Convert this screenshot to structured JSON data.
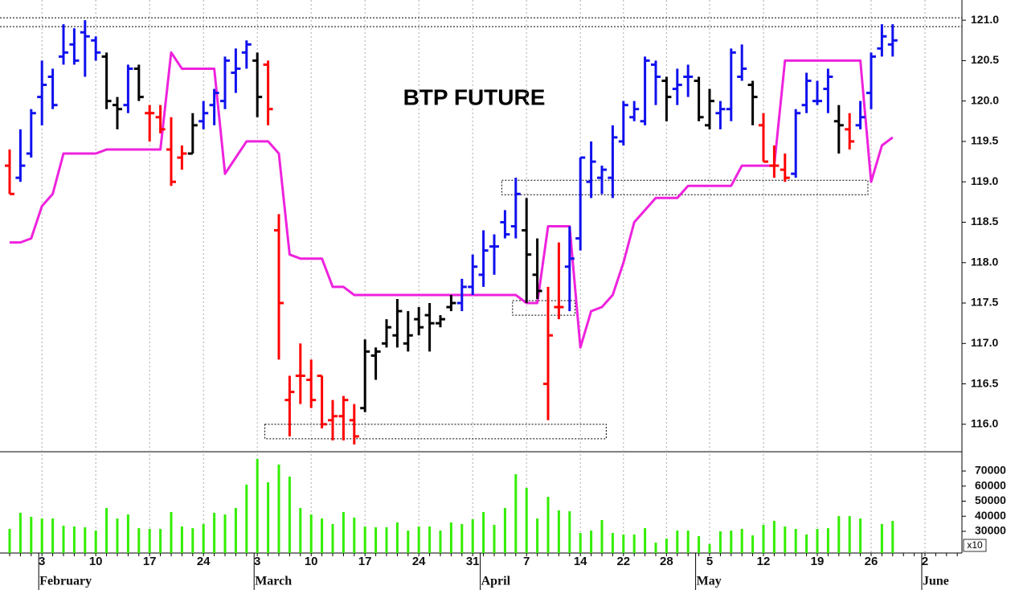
{
  "chart_data": {
    "type": "ohlc",
    "title": "BTP FUTURE",
    "categories": [
      null,
      null,
      null,
      "3",
      null,
      null,
      null,
      null,
      "10",
      null,
      null,
      null,
      null,
      "17",
      null,
      null,
      null,
      null,
      "24",
      null,
      null,
      null,
      null,
      "3",
      null,
      null,
      null,
      null,
      "10",
      null,
      null,
      null,
      null,
      "17",
      null,
      null,
      null,
      null,
      "24",
      null,
      null,
      null,
      null,
      "31",
      null,
      null,
      null,
      null,
      "7",
      null,
      null,
      null,
      null,
      "14",
      null,
      null,
      null,
      "22",
      null,
      null,
      null,
      "28",
      null,
      null,
      null,
      "5",
      null,
      null,
      null,
      null,
      "12",
      null,
      null,
      null,
      null,
      "19",
      null,
      null,
      null,
      null,
      "26",
      null,
      null,
      null,
      null,
      "2",
      null,
      null,
      null
    ],
    "months": [
      null,
      null,
      null,
      "February",
      null,
      null,
      null,
      null,
      null,
      null,
      null,
      null,
      null,
      null,
      null,
      null,
      null,
      null,
      null,
      null,
      null,
      null,
      null,
      "March",
      null,
      null,
      null,
      null,
      null,
      null,
      null,
      null,
      null,
      null,
      null,
      null,
      null,
      null,
      null,
      null,
      null,
      null,
      null,
      null,
      "April",
      null,
      null,
      null,
      null,
      null,
      null,
      null,
      null,
      null,
      null,
      null,
      null,
      null,
      null,
      null,
      null,
      null,
      null,
      null,
      "May",
      null,
      null,
      null,
      null,
      null,
      null,
      null,
      null,
      null,
      null,
      null,
      null,
      null,
      null,
      null,
      null,
      null,
      null,
      null,
      null,
      "June",
      null,
      null,
      null
    ],
    "open": [
      119.2,
      119.05,
      119.35,
      120.05,
      120.3,
      120.55,
      120.7,
      120.85,
      120.75,
      120.55,
      119.95,
      119.95,
      120.4,
      119.85,
      119.8,
      119.4,
      119.3,
      119.35,
      119.75,
      119.95,
      120.0,
      120.35,
      120.6,
      120.5,
      120.45,
      118.4,
      116.3,
      116.6,
      116.55,
      116.6,
      116.05,
      116.1,
      116.05,
      116.2,
      116.85,
      117.0,
      117.1,
      117.0,
      117.3,
      117.35,
      117.25,
      117.45,
      117.5,
      117.7,
      117.85,
      118.2,
      118.5,
      118.45,
      118.4,
      117.85,
      116.5,
      117.45,
      117.95,
      118.3,
      119.0,
      119.05,
      119.05,
      119.5,
      119.8,
      119.75,
      120.45,
      120.25,
      120.15,
      120.3,
      120.25,
      119.7,
      119.85,
      119.9,
      120.3,
      120.2,
      119.7,
      119.2,
      119.15,
      119.1,
      119.95,
      120.0,
      120.15,
      119.75,
      119.65,
      119.7,
      120.1,
      120.65,
      120.7,
      null,
      null,
      null,
      null,
      null,
      null
    ],
    "high": [
      119.4,
      119.65,
      119.9,
      120.5,
      120.4,
      120.95,
      120.9,
      121.0,
      120.8,
      120.6,
      120.05,
      120.45,
      120.45,
      119.95,
      119.95,
      119.8,
      119.45,
      119.85,
      120.0,
      120.15,
      120.55,
      120.65,
      120.75,
      120.6,
      120.5,
      118.6,
      116.6,
      117.0,
      116.8,
      116.6,
      116.3,
      116.35,
      116.25,
      117.05,
      116.95,
      117.3,
      117.55,
      117.4,
      117.45,
      117.5,
      117.35,
      117.6,
      117.8,
      118.1,
      118.4,
      118.35,
      118.65,
      119.05,
      118.8,
      118.3,
      117.7,
      118.25,
      118.45,
      119.3,
      119.5,
      119.2,
      119.7,
      120.0,
      120.0,
      120.55,
      120.5,
      120.3,
      120.4,
      120.45,
      120.3,
      120.15,
      120.0,
      120.65,
      120.7,
      120.25,
      119.85,
      119.45,
      119.35,
      119.9,
      120.35,
      120.25,
      120.4,
      119.95,
      119.85,
      120.0,
      120.6,
      120.95,
      120.95,
      null,
      null,
      null,
      null,
      null,
      null
    ],
    "low": [
      118.85,
      119.0,
      119.3,
      119.7,
      119.9,
      120.45,
      120.45,
      120.3,
      120.5,
      119.9,
      119.65,
      119.85,
      120.0,
      119.5,
      119.6,
      118.95,
      119.15,
      119.35,
      119.65,
      119.7,
      119.9,
      120.1,
      120.4,
      119.8,
      119.7,
      116.8,
      115.85,
      116.25,
      116.2,
      115.95,
      115.8,
      115.8,
      115.75,
      116.15,
      116.55,
      116.95,
      116.95,
      116.9,
      117.1,
      116.9,
      117.2,
      117.4,
      117.4,
      117.6,
      117.7,
      117.85,
      118.3,
      118.3,
      117.5,
      117.55,
      116.05,
      117.3,
      117.4,
      118.15,
      118.8,
      118.85,
      118.8,
      119.45,
      119.75,
      119.7,
      119.95,
      119.75,
      119.95,
      120.05,
      119.75,
      119.65,
      119.65,
      119.75,
      120.25,
      119.7,
      119.25,
      119.05,
      119.0,
      119.05,
      119.85,
      119.95,
      119.85,
      119.35,
      119.4,
      119.65,
      119.9,
      120.55,
      120.55,
      null,
      null,
      null,
      null,
      null,
      null
    ],
    "close": [
      118.85,
      119.2,
      119.85,
      120.2,
      119.95,
      120.6,
      120.5,
      120.8,
      120.6,
      120.0,
      119.9,
      120.4,
      120.05,
      119.85,
      119.65,
      119.0,
      119.35,
      119.7,
      119.85,
      120.1,
      120.5,
      120.4,
      120.7,
      120.05,
      119.9,
      117.5,
      116.4,
      116.6,
      116.3,
      116.0,
      116.1,
      116.3,
      115.85,
      116.9,
      116.9,
      117.2,
      117.4,
      117.1,
      117.2,
      117.25,
      117.3,
      117.5,
      117.7,
      117.95,
      118.15,
      118.2,
      118.35,
      118.85,
      118.1,
      117.65,
      117.1,
      117.45,
      118.05,
      119.3,
      119.25,
      119.15,
      119.55,
      119.95,
      119.9,
      120.5,
      120.3,
      120.05,
      120.2,
      120.3,
      119.8,
      120.0,
      119.9,
      120.6,
      120.4,
      120.05,
      119.25,
      119.2,
      119.05,
      119.85,
      120.25,
      120.0,
      120.3,
      119.7,
      119.5,
      119.8,
      120.55,
      120.8,
      120.75,
      null,
      null,
      null,
      null,
      null,
      null
    ],
    "bar_colors": [
      "#ff0000",
      "#1010ee",
      "#1010ee",
      "#1010ee",
      "#1010ee",
      "#1010ee",
      "#1010ee",
      "#1010ee",
      "#1010ee",
      "#000000",
      "#000000",
      "#1010ee",
      "#000000",
      "#ff0000",
      "#ff0000",
      "#ff0000",
      "#ff0000",
      "#000000",
      "#1010ee",
      "#1010ee",
      "#1010ee",
      "#1010ee",
      "#1010ee",
      "#000000",
      "#ff0000",
      "#ff0000",
      "#ff0000",
      "#ff0000",
      "#ff0000",
      "#ff0000",
      "#ff0000",
      "#ff0000",
      "#ff0000",
      "#000000",
      "#000000",
      "#000000",
      "#000000",
      "#000000",
      "#000000",
      "#000000",
      "#000000",
      "#000000",
      "#1010ee",
      "#1010ee",
      "#1010ee",
      "#1010ee",
      "#1010ee",
      "#1010ee",
      "#000000",
      "#000000",
      "#ff0000",
      "#ff0000",
      "#1010ee",
      "#1010ee",
      "#1010ee",
      "#1010ee",
      "#1010ee",
      "#1010ee",
      "#1010ee",
      "#1010ee",
      "#1010ee",
      "#000000",
      "#1010ee",
      "#1010ee",
      "#000000",
      "#000000",
      "#1010ee",
      "#1010ee",
      "#1010ee",
      "#000000",
      "#ff0000",
      "#ff0000",
      "#ff0000",
      "#1010ee",
      "#1010ee",
      "#1010ee",
      "#1010ee",
      "#000000",
      "#ff0000",
      "#1010ee",
      "#1010ee",
      "#1010ee",
      "#1010ee",
      null,
      null,
      null,
      null,
      null,
      null
    ],
    "line": {
      "color": "#ee22dd",
      "values": [
        118.25,
        118.25,
        118.3,
        118.7,
        118.85,
        119.35,
        119.35,
        119.35,
        119.35,
        119.4,
        119.4,
        119.4,
        119.4,
        119.4,
        119.4,
        120.6,
        120.4,
        120.4,
        120.4,
        120.4,
        119.1,
        119.3,
        119.5,
        119.5,
        119.5,
        119.35,
        118.1,
        118.05,
        118.05,
        118.05,
        117.7,
        117.7,
        117.6,
        117.6,
        117.6,
        117.6,
        117.6,
        117.6,
        117.6,
        117.6,
        117.6,
        117.6,
        117.6,
        117.6,
        117.6,
        117.6,
        117.6,
        117.6,
        117.5,
        117.5,
        118.45,
        118.45,
        118.45,
        116.95,
        117.4,
        117.45,
        117.6,
        118.0,
        118.5,
        118.65,
        118.8,
        118.8,
        118.8,
        118.95,
        118.95,
        118.95,
        118.95,
        118.95,
        119.2,
        119.2,
        119.2,
        119.2,
        120.5,
        120.5,
        120.5,
        120.5,
        120.5,
        120.5,
        120.5,
        120.5,
        119.0,
        119.45,
        119.55,
        null,
        null,
        null,
        null,
        null,
        null
      ]
    },
    "ylim": [
      115.66,
      121.25
    ],
    "yticks": [
      {
        "value": 116,
        "label": "116.0"
      },
      116.5,
      {
        "value": 117,
        "label": "117.0"
      },
      117.5,
      {
        "value": 118,
        "label": "118.0"
      },
      118.5,
      {
        "value": 119,
        "label": "119.0"
      },
      119.5,
      {
        "value": 120,
        "label": "120.0"
      },
      120.5,
      {
        "value": 121,
        "label": "121.0"
      }
    ],
    "hlines": [
      121.03,
      120.92
    ],
    "boxes": [
      {
        "start": 23.7,
        "end": 55.4,
        "low": 115.82,
        "high": 116.0
      },
      {
        "start": 45.7,
        "end": 79.7,
        "low": 118.84,
        "high": 119.02
      },
      {
        "start": 46.7,
        "end": 52.5,
        "low": 117.35,
        "high": 117.53
      }
    ],
    "volume": {
      "type": "bar",
      "color": "#33ee00",
      "unit_label": "x10",
      "values": [
        31600,
        42300,
        39600,
        38500,
        38500,
        33700,
        33200,
        32700,
        30500,
        45500,
        38500,
        41200,
        32100,
        31600,
        31600,
        42800,
        33200,
        32100,
        34800,
        42300,
        41200,
        45500,
        61000,
        78000,
        62500,
        74300,
        66300,
        45500,
        41200,
        38500,
        34800,
        42800,
        39100,
        33200,
        32700,
        32700,
        35900,
        30500,
        33200,
        33200,
        30500,
        35900,
        34800,
        38000,
        42800,
        34300,
        45500,
        67900,
        58800,
        38500,
        52900,
        43900,
        43300,
        28900,
        30500,
        37500,
        28900,
        27900,
        27900,
        32100,
        22500,
        25200,
        30500,
        30500,
        26800,
        21500,
        30000,
        30500,
        31600,
        27300,
        34300,
        36900,
        33200,
        31600,
        27900,
        31600,
        32100,
        40100,
        40100,
        38500,
        null,
        34800,
        36900,
        null,
        null,
        null,
        null,
        null,
        null
      ],
      "ylim": [
        15600,
        82800
      ],
      "yticks": [
        30000,
        40000,
        50000,
        60000,
        70000
      ]
    }
  }
}
